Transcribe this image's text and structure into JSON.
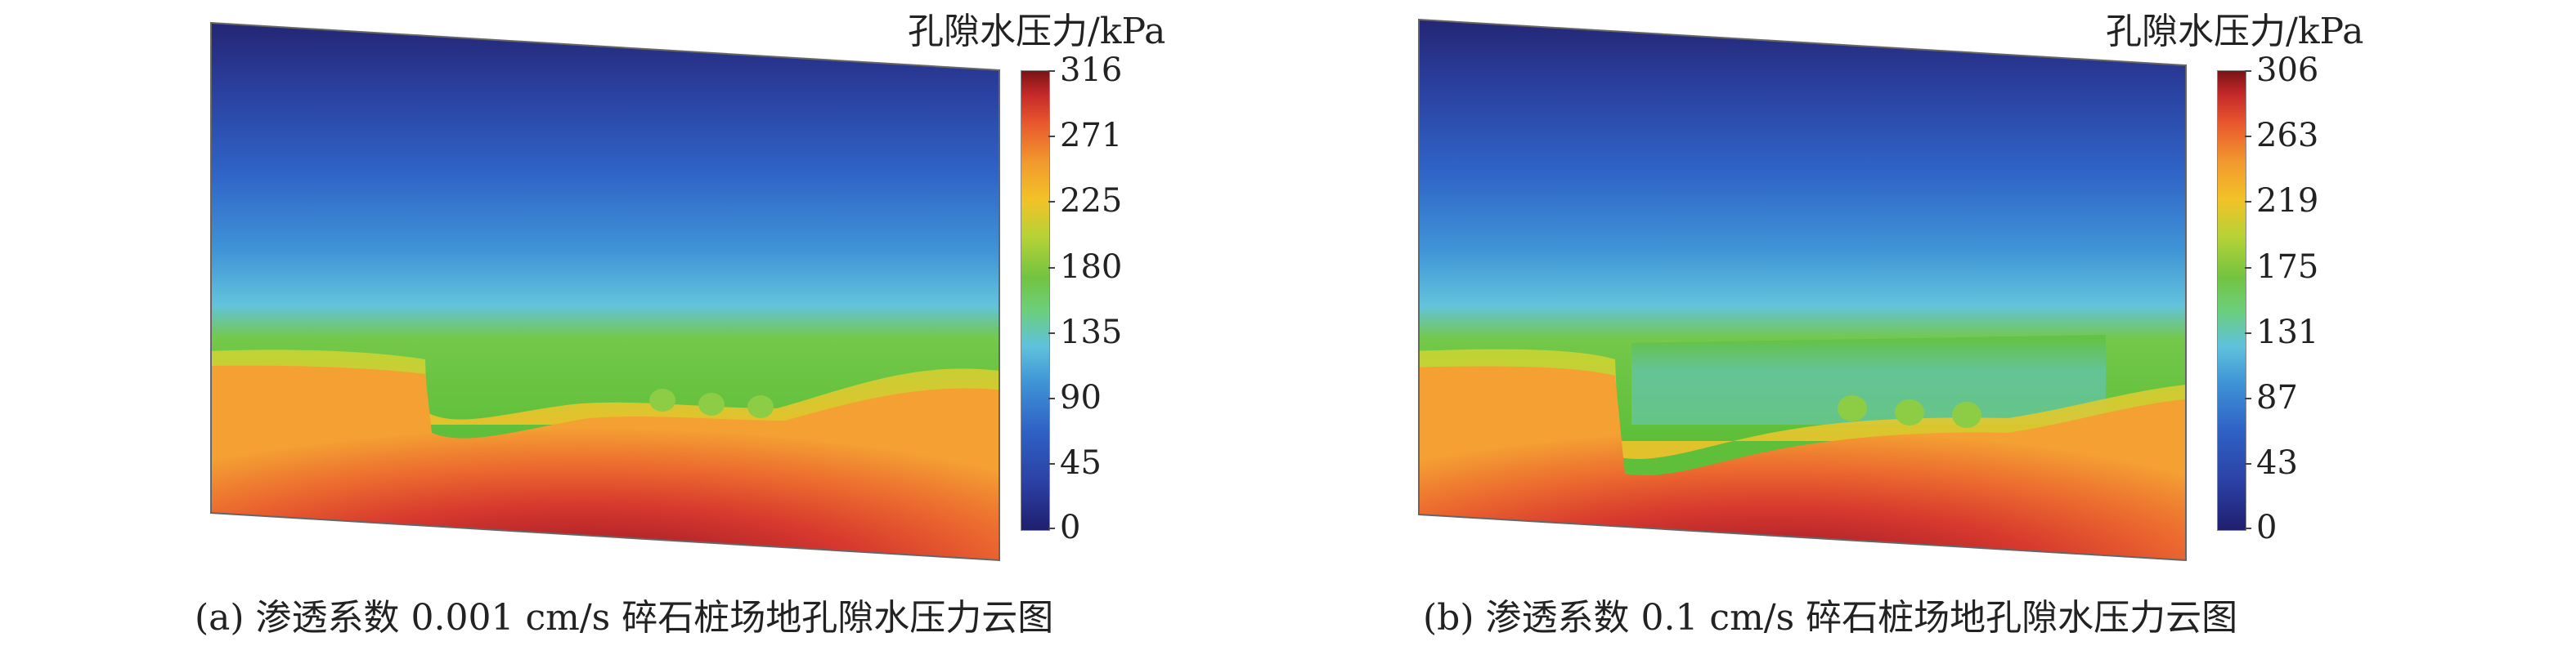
{
  "panels": [
    {
      "id": "a",
      "unit_label": "孔隙水压力/kPa",
      "colorbar_ticks": [
        "316",
        "271",
        "225",
        "180",
        "135",
        "90",
        "45",
        "0"
      ],
      "caption": "(a) 渗透系数 0.001 cm/s 碎石桩场地孔隙水压力云图"
    },
    {
      "id": "b",
      "unit_label": "孔隙水压力/kPa",
      "colorbar_ticks": [
        "306",
        "263",
        "219",
        "175",
        "131",
        "87",
        "43",
        "0"
      ],
      "caption": "(b) 渗透系数 0.1 cm/s 碎石桩场地孔隙水压力云图"
    }
  ],
  "colors": {
    "min": "#1f1f6e",
    "low": "#2f63c6",
    "mid_low": "#5fc2dd",
    "mid": "#73c341",
    "mid_high": "#f2c227",
    "high": "#e8542e",
    "max": "#7a1416"
  }
}
